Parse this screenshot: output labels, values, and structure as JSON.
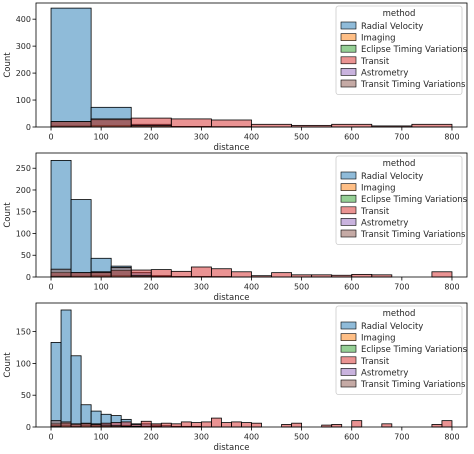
{
  "chart_data": [
    {
      "type": "bar",
      "title": "",
      "xlabel": "distance",
      "ylabel": "Count",
      "xlim": [
        -30,
        830
      ],
      "ylim": [
        0,
        460
      ],
      "bin_edges": [
        0,
        80,
        160,
        240,
        320,
        400,
        480,
        560,
        640,
        720,
        800
      ],
      "x_ticks": [
        0,
        100,
        200,
        300,
        400,
        500,
        600,
        700,
        800
      ],
      "y_ticks": [
        0,
        100,
        200,
        300,
        400
      ],
      "legend_title": "method",
      "legend_position": "top-right",
      "series": [
        {
          "name": "Radial Velocity",
          "color": "#1f77b4",
          "values": [
            441,
            73,
            10,
            2,
            1,
            0,
            0,
            0,
            0,
            0
          ]
        },
        {
          "name": "Imaging",
          "color": "#ff7f0e",
          "values": [
            4,
            6,
            5,
            2,
            1,
            0,
            0,
            0,
            0,
            0
          ]
        },
        {
          "name": "Eclipse Timing Variations",
          "color": "#2ca02c",
          "values": [
            2,
            1,
            0,
            0,
            0,
            0,
            0,
            0,
            0,
            0
          ]
        },
        {
          "name": "Transit",
          "color": "#d62728",
          "values": [
            20,
            27,
            33,
            30,
            26,
            10,
            6,
            10,
            4,
            10
          ]
        },
        {
          "name": "Astrometry",
          "color": "#9467bd",
          "values": [
            1,
            0,
            0,
            0,
            0,
            0,
            0,
            0,
            0,
            0
          ]
        },
        {
          "name": "Transit Timing Variations",
          "color": "#8c564b",
          "values": [
            20,
            30,
            5,
            0,
            0,
            0,
            0,
            0,
            0,
            0
          ]
        }
      ]
    },
    {
      "type": "bar",
      "title": "",
      "xlabel": "distance",
      "ylabel": "Count",
      "xlim": [
        -30,
        830
      ],
      "ylim": [
        0,
        285
      ],
      "bin_edges": [
        0,
        40,
        80,
        120,
        160,
        200,
        240,
        280,
        320,
        360,
        400,
        440,
        480,
        520,
        560,
        600,
        640,
        680,
        720,
        760,
        800
      ],
      "x_ticks": [
        0,
        100,
        200,
        300,
        400,
        500,
        600,
        700,
        800
      ],
      "y_ticks": [
        0,
        50,
        100,
        150,
        200,
        250
      ],
      "legend_title": "method",
      "legend_position": "top-right",
      "series": [
        {
          "name": "Radial Velocity",
          "color": "#1f77b4",
          "values": [
            268,
            178,
            43,
            25,
            10,
            3,
            1,
            1,
            1,
            0,
            0,
            0,
            0,
            0,
            0,
            0,
            0,
            0,
            0,
            0
          ]
        },
        {
          "name": "Imaging",
          "color": "#ff7f0e",
          "values": [
            2,
            2,
            3,
            3,
            2,
            2,
            1,
            1,
            0,
            0,
            0,
            0,
            0,
            0,
            0,
            0,
            0,
            0,
            0,
            0
          ]
        },
        {
          "name": "Eclipse Timing Variations",
          "color": "#2ca02c",
          "values": [
            1,
            1,
            1,
            0,
            0,
            0,
            0,
            0,
            0,
            0,
            0,
            0,
            0,
            0,
            0,
            0,
            0,
            0,
            0,
            0
          ]
        },
        {
          "name": "Transit",
          "color": "#d62728",
          "values": [
            10,
            10,
            12,
            15,
            16,
            17,
            13,
            23,
            19,
            12,
            3,
            10,
            5,
            5,
            4,
            6,
            5,
            0,
            0,
            12
          ]
        },
        {
          "name": "Astrometry",
          "color": "#9467bd",
          "values": [
            1,
            0,
            0,
            0,
            0,
            0,
            0,
            0,
            0,
            0,
            0,
            0,
            0,
            0,
            0,
            0,
            0,
            0,
            0,
            0
          ]
        },
        {
          "name": "Transit Timing Variations",
          "color": "#8c564b",
          "values": [
            18,
            10,
            10,
            22,
            3,
            0,
            0,
            0,
            0,
            0,
            0,
            0,
            0,
            0,
            0,
            0,
            0,
            0,
            0,
            0
          ]
        }
      ]
    },
    {
      "type": "bar",
      "title": "",
      "xlabel": "distance",
      "ylabel": "Count",
      "xlim": [
        -30,
        830
      ],
      "ylim": [
        0,
        195
      ],
      "bin_edges": [
        0,
        20,
        40,
        60,
        80,
        100,
        120,
        140,
        160,
        180,
        200,
        220,
        240,
        260,
        280,
        300,
        320,
        340,
        360,
        380,
        400,
        420,
        440,
        460,
        480,
        500,
        520,
        540,
        560,
        580,
        600,
        620,
        640,
        660,
        680,
        700,
        720,
        740,
        760,
        780,
        800
      ],
      "x_ticks": [
        0,
        100,
        200,
        300,
        400,
        500,
        600,
        700,
        800
      ],
      "y_ticks": [
        0,
        50,
        100,
        150
      ],
      "legend_title": "method",
      "legend_position": "top-right",
      "series": [
        {
          "name": "Radial Velocity",
          "color": "#1f77b4",
          "values": [
            133,
            184,
            112,
            35,
            25,
            20,
            18,
            12,
            5,
            5,
            3,
            2,
            1,
            1,
            0,
            0,
            0,
            0,
            0,
            0,
            0,
            0,
            0,
            0,
            0,
            0,
            0,
            0,
            0,
            0,
            0,
            0,
            0,
            0,
            0,
            0,
            0,
            0,
            0,
            0
          ]
        },
        {
          "name": "Imaging",
          "color": "#ff7f0e",
          "values": [
            2,
            2,
            1,
            2,
            2,
            1,
            1,
            2,
            1,
            1,
            1,
            0,
            1,
            0,
            1,
            0,
            0,
            0,
            0,
            0,
            0,
            0,
            0,
            0,
            0,
            0,
            0,
            0,
            0,
            0,
            0,
            0,
            0,
            0,
            0,
            0,
            0,
            0,
            0,
            0
          ]
        },
        {
          "name": "Eclipse Timing Variations",
          "color": "#2ca02c",
          "values": [
            1,
            0,
            1,
            0,
            1,
            0,
            0,
            0,
            0,
            0,
            0,
            0,
            0,
            0,
            0,
            0,
            0,
            0,
            0,
            0,
            0,
            0,
            0,
            0,
            0,
            0,
            0,
            0,
            0,
            0,
            0,
            0,
            0,
            0,
            0,
            0,
            0,
            0,
            0,
            0
          ]
        },
        {
          "name": "Transit",
          "color": "#d62728",
          "values": [
            5,
            6,
            4,
            5,
            5,
            6,
            7,
            8,
            4,
            9,
            5,
            6,
            5,
            8,
            7,
            8,
            14,
            7,
            8,
            7,
            6,
            0,
            0,
            4,
            6,
            0,
            0,
            3,
            4,
            0,
            10,
            0,
            0,
            5,
            0,
            0,
            0,
            0,
            4,
            10
          ]
        },
        {
          "name": "Astrometry",
          "color": "#9467bd",
          "values": [
            1,
            0,
            0,
            0,
            0,
            0,
            0,
            0,
            0,
            0,
            0,
            0,
            0,
            0,
            0,
            0,
            0,
            0,
            0,
            0,
            0,
            0,
            0,
            0,
            0,
            0,
            0,
            0,
            0,
            0,
            0,
            0,
            0,
            0,
            0,
            0,
            0,
            0,
            0,
            0
          ]
        },
        {
          "name": "Transit Timing Variations",
          "color": "#8c564b",
          "values": [
            10,
            8,
            5,
            6,
            4,
            3,
            2,
            1,
            1,
            0,
            0,
            0,
            0,
            0,
            0,
            0,
            0,
            0,
            0,
            0,
            0,
            0,
            0,
            0,
            0,
            0,
            0,
            0,
            0,
            0,
            0,
            0,
            0,
            0,
            0,
            0,
            0,
            0,
            0,
            0
          ]
        }
      ]
    }
  ]
}
